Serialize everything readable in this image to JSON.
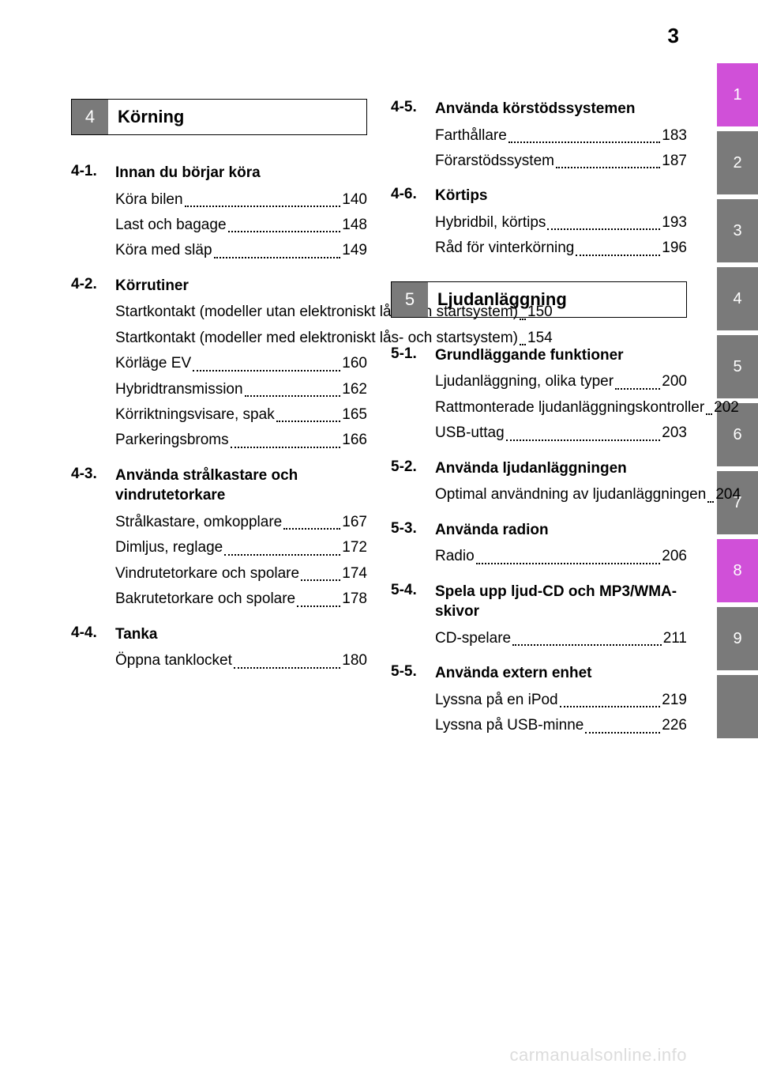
{
  "page_number": "3",
  "watermark": "carmanualsonline.info",
  "tabs": [
    {
      "label": "1",
      "highlight": true
    },
    {
      "label": "2",
      "highlight": false
    },
    {
      "label": "3",
      "highlight": false
    },
    {
      "label": "4",
      "highlight": false
    },
    {
      "label": "5",
      "highlight": false
    },
    {
      "label": "6",
      "highlight": false
    },
    {
      "label": "7",
      "highlight": false
    },
    {
      "label": "8",
      "highlight": true
    },
    {
      "label": "9",
      "highlight": false
    },
    {
      "label": "",
      "highlight": false
    }
  ],
  "colors": {
    "tab_bg": "#7a7a7a",
    "tab_highlight_bg": "#d050d8",
    "tab_text": "#ffffff",
    "section_num_bg": "#7a7a7a",
    "text": "#000000",
    "watermark": "#dcdcdc",
    "page_bg": "#ffffff"
  },
  "left": {
    "section": {
      "num": "4",
      "title": "Körning"
    },
    "subs": [
      {
        "num": "4-1.",
        "title": "Innan du börjar köra",
        "entries": [
          {
            "text": "Köra bilen",
            "page": "140"
          },
          {
            "text": "Last och bagage",
            "page": "148"
          },
          {
            "text": "Köra med släp",
            "page": "149"
          }
        ]
      },
      {
        "num": "4-2.",
        "title": "Körrutiner",
        "entries": [
          {
            "text": "Startkontakt (modeller utan elektroniskt lås- och startsystem)",
            "page": "150",
            "indent": true
          },
          {
            "text": "Startkontakt (modeller med elektroniskt lås- och startsystem)",
            "page": "154",
            "indent": true
          },
          {
            "text": "Körläge EV",
            "page": "160"
          },
          {
            "text": "Hybridtransmission",
            "page": "162"
          },
          {
            "text": "Körriktningsvisare, spak",
            "page": "165"
          },
          {
            "text": "Parkeringsbroms",
            "page": "166"
          }
        ]
      },
      {
        "num": "4-3.",
        "title": "Använda strålkastare och vindrutetorkare",
        "entries": [
          {
            "text": "Strålkastare, omkopplare",
            "page": "167"
          },
          {
            "text": "Dimljus, reglage",
            "page": "172"
          },
          {
            "text": "Vindrutetorkare och spolare",
            "page": "174",
            "indent": true
          },
          {
            "text": "Bakrutetorkare och spolare",
            "page": "178",
            "indent": true
          }
        ]
      },
      {
        "num": "4-4.",
        "title": "Tanka",
        "entries": [
          {
            "text": "Öppna tanklocket",
            "page": "180"
          }
        ]
      }
    ]
  },
  "right_top": {
    "subs": [
      {
        "num": "4-5.",
        "title": "Använda körstödssystemen",
        "entries": [
          {
            "text": "Farthållare",
            "page": "183"
          },
          {
            "text": "Förarstödssystem",
            "page": "187"
          }
        ]
      },
      {
        "num": "4-6.",
        "title": "Körtips",
        "entries": [
          {
            "text": "Hybridbil, körtips",
            "page": "193"
          },
          {
            "text": "Råd för vinterkörning",
            "page": "196"
          }
        ]
      }
    ]
  },
  "right_section": {
    "num": "5",
    "title": "Ljudanläggning"
  },
  "right_bottom": {
    "subs": [
      {
        "num": "5-1.",
        "title": "Grundläggande funktioner",
        "entries": [
          {
            "text": "Ljudanläggning, olika typer",
            "page": "200",
            "indent": true
          },
          {
            "text": "Rattmonterade ljudanläggningskontroller",
            "page": "202",
            "indent": true
          },
          {
            "text": "USB-uttag",
            "page": "203"
          }
        ]
      },
      {
        "num": "5-2.",
        "title": "Använda ljudanläggningen",
        "entries": [
          {
            "text": "Optimal användning av ljudanläggningen",
            "page": "204",
            "indent": true
          }
        ]
      },
      {
        "num": "5-3.",
        "title": "Använda radion",
        "entries": [
          {
            "text": "Radio",
            "page": "206"
          }
        ]
      },
      {
        "num": "5-4.",
        "title": "Spela upp ljud-CD och MP3/WMA-skivor",
        "entries": [
          {
            "text": "CD-spelare",
            "page": "211"
          }
        ]
      },
      {
        "num": "5-5.",
        "title": "Använda extern enhet",
        "entries": [
          {
            "text": "Lyssna på en iPod",
            "page": "219"
          },
          {
            "text": "Lyssna på USB-minne",
            "page": "226"
          }
        ]
      }
    ]
  }
}
